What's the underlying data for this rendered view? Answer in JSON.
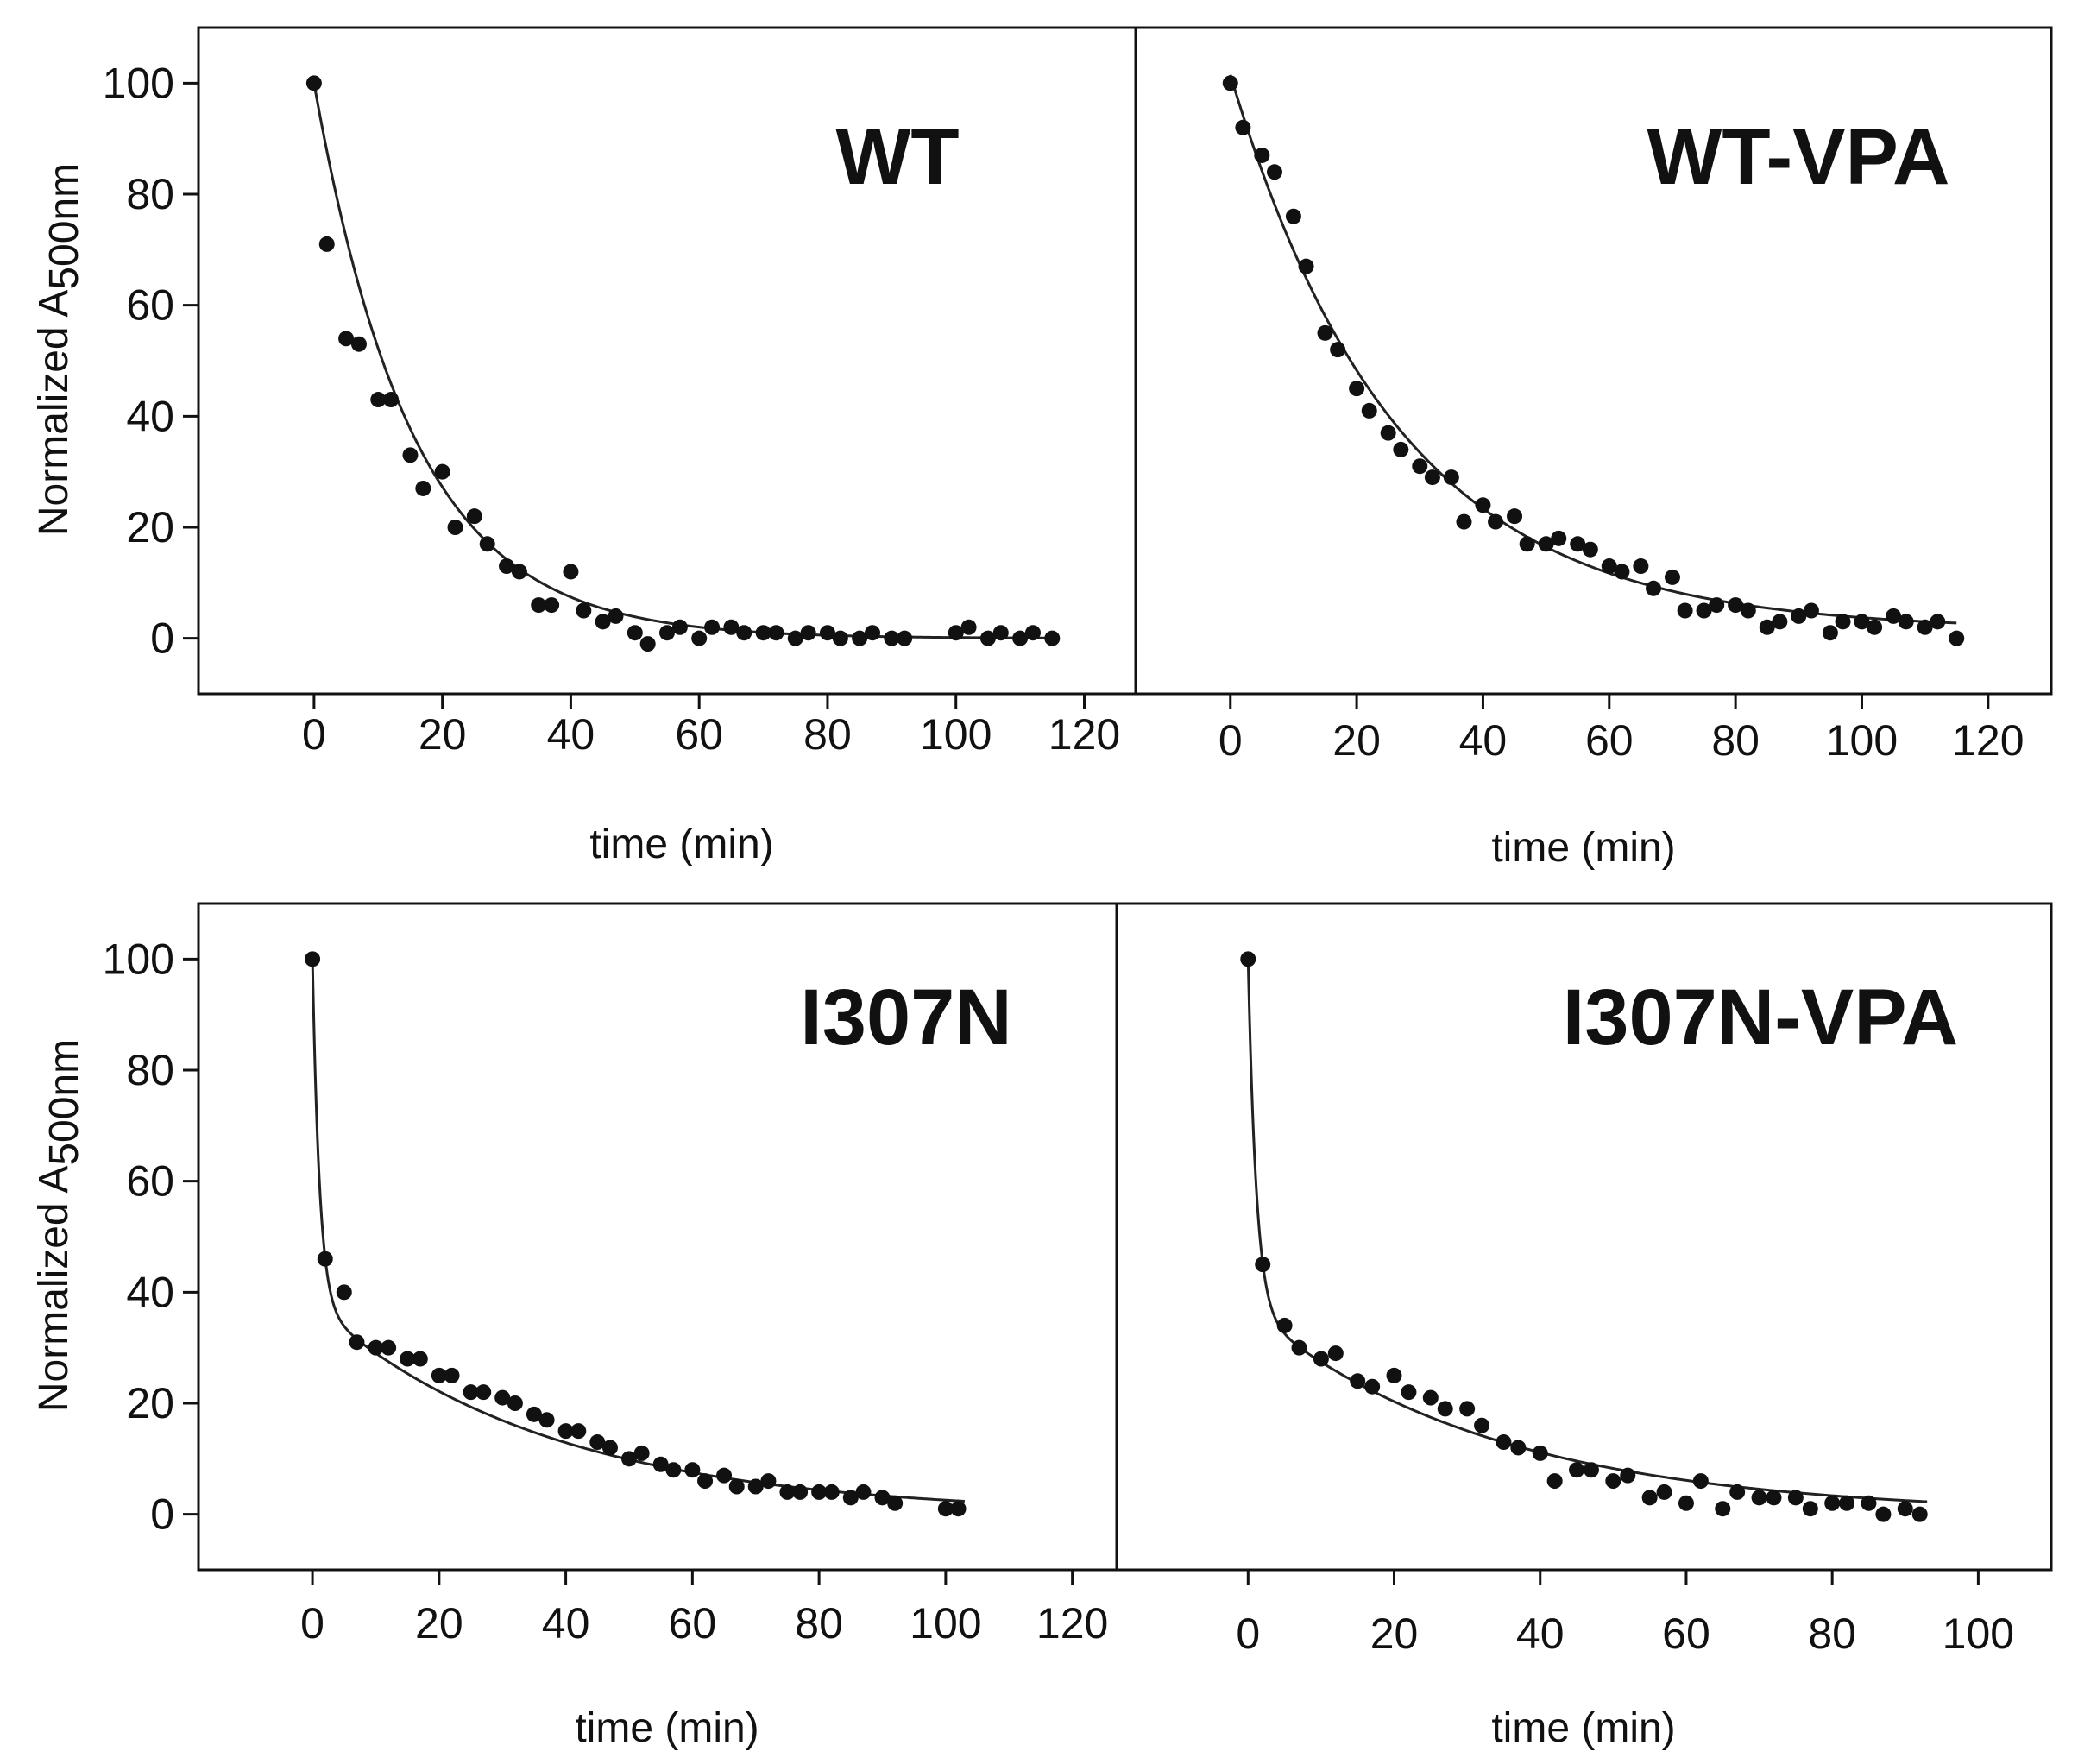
{
  "figure": {
    "ylabel": "Normalized A",
    "ylabel_sub": "500nm"
  },
  "chart_data": [
    {
      "id": "WT",
      "type": "scatter",
      "title": "WT",
      "xlabel": "time (min)",
      "ylabel": "Normalized A500nm",
      "xlim": [
        -18,
        128
      ],
      "ylim": [
        -10,
        110
      ],
      "xticks": [
        0,
        20,
        40,
        60,
        80,
        100,
        120
      ],
      "yticks": [
        0,
        20,
        40,
        60,
        80,
        100
      ],
      "fit": {
        "form": "exp",
        "A1": 100,
        "k1": 0.065,
        "A2": 0,
        "k2": 0,
        "c": 0,
        "xmax": 115
      },
      "x": [
        0,
        2,
        5,
        7,
        10,
        12,
        15,
        17,
        20,
        22,
        25,
        27,
        30,
        32,
        35,
        37,
        40,
        42,
        45,
        47,
        50,
        52,
        55,
        57,
        60,
        62,
        65,
        67,
        70,
        72,
        75,
        77,
        80,
        82,
        85,
        87,
        90,
        92,
        100,
        102,
        105,
        107,
        110,
        112,
        115
      ],
      "y": [
        100,
        71,
        54,
        53,
        43,
        43,
        33,
        27,
        30,
        20,
        22,
        17,
        13,
        12,
        6,
        6,
        12,
        5,
        3,
        4,
        1,
        -1,
        1,
        2,
        0,
        2,
        2,
        1,
        1,
        1,
        0,
        1,
        1,
        0,
        0,
        1,
        0,
        0,
        1,
        2,
        0,
        1,
        0,
        1,
        0
      ]
    },
    {
      "id": "WT-VPA",
      "type": "scatter",
      "title": "WT-VPA",
      "xlabel": "time (min)",
      "ylabel": "",
      "xlim": [
        -15,
        130
      ],
      "ylim": [
        -10,
        110
      ],
      "xticks": [
        0,
        20,
        40,
        60,
        80,
        100,
        120
      ],
      "yticks": [
        0,
        20,
        40,
        60,
        80,
        100
      ],
      "fit": {
        "form": "exp",
        "A1": 100,
        "k1": 0.038,
        "A2": 0,
        "k2": 0,
        "c": 1.5,
        "xmax": 115
      },
      "x": [
        0,
        2,
        5,
        7,
        10,
        12,
        15,
        17,
        20,
        22,
        25,
        27,
        30,
        32,
        35,
        37,
        40,
        42,
        45,
        47,
        50,
        52,
        55,
        57,
        60,
        62,
        65,
        67,
        70,
        72,
        75,
        77,
        80,
        82,
        85,
        87,
        90,
        92,
        95,
        97,
        100,
        102,
        105,
        107,
        110,
        112,
        115
      ],
      "y": [
        100,
        92,
        87,
        84,
        76,
        67,
        55,
        52,
        45,
        41,
        37,
        34,
        31,
        29,
        29,
        21,
        24,
        21,
        22,
        17,
        17,
        18,
        17,
        16,
        13,
        12,
        13,
        9,
        11,
        5,
        5,
        6,
        6,
        5,
        2,
        3,
        4,
        5,
        1,
        3,
        3,
        2,
        4,
        3,
        2,
        3,
        0
      ]
    },
    {
      "id": "I307N",
      "type": "scatter",
      "title": "I307N",
      "xlabel": "time (min)",
      "ylabel": "Normalized A500nm",
      "xlim": [
        -18,
        127
      ],
      "ylim": [
        -10,
        110
      ],
      "xticks": [
        0,
        20,
        40,
        60,
        80,
        100,
        120
      ],
      "yticks": [
        0,
        20,
        40,
        60,
        80,
        100
      ],
      "fit": {
        "form": "biexp",
        "A1": 62,
        "k1": 0.9,
        "A2": 38,
        "k2": 0.027,
        "c": 0,
        "xmax": 103
      },
      "x": [
        0,
        2,
        5,
        7,
        10,
        12,
        15,
        17,
        20,
        22,
        25,
        27,
        30,
        32,
        35,
        37,
        40,
        42,
        45,
        47,
        50,
        52,
        55,
        57,
        60,
        62,
        65,
        67,
        70,
        72,
        75,
        77,
        80,
        82,
        85,
        87,
        90,
        92,
        100,
        102
      ],
      "y": [
        100,
        46,
        40,
        31,
        30,
        30,
        28,
        28,
        25,
        25,
        22,
        22,
        21,
        20,
        18,
        17,
        15,
        15,
        13,
        12,
        10,
        11,
        9,
        8,
        8,
        6,
        7,
        5,
        5,
        6,
        4,
        4,
        4,
        4,
        3,
        4,
        3,
        2,
        1,
        1
      ]
    },
    {
      "id": "I307N-VPA",
      "type": "scatter",
      "title": "I307N-VPA",
      "xlabel": "time (min)",
      "ylabel": "",
      "xlim": [
        -18,
        110
      ],
      "ylim": [
        -10,
        110
      ],
      "xticks": [
        0,
        20,
        40,
        60,
        80,
        100
      ],
      "yticks": [
        0,
        20,
        40,
        60,
        80,
        100
      ],
      "fit": {
        "form": "biexp",
        "A1": 63,
        "k1": 0.9,
        "A2": 37,
        "k2": 0.03,
        "c": 0,
        "xmax": 93
      },
      "x": [
        0,
        2,
        5,
        7,
        10,
        12,
        15,
        17,
        20,
        22,
        25,
        27,
        30,
        32,
        35,
        37,
        40,
        42,
        45,
        47,
        50,
        52,
        55,
        57,
        60,
        62,
        65,
        67,
        70,
        72,
        75,
        77,
        80,
        82,
        85,
        87,
        90,
        92
      ],
      "y": [
        100,
        45,
        34,
        30,
        28,
        29,
        24,
        23,
        25,
        22,
        21,
        19,
        19,
        16,
        13,
        12,
        11,
        6,
        8,
        8,
        6,
        7,
        3,
        4,
        2,
        6,
        1,
        4,
        3,
        3,
        3,
        1,
        2,
        2,
        2,
        0,
        1,
        0
      ]
    }
  ]
}
